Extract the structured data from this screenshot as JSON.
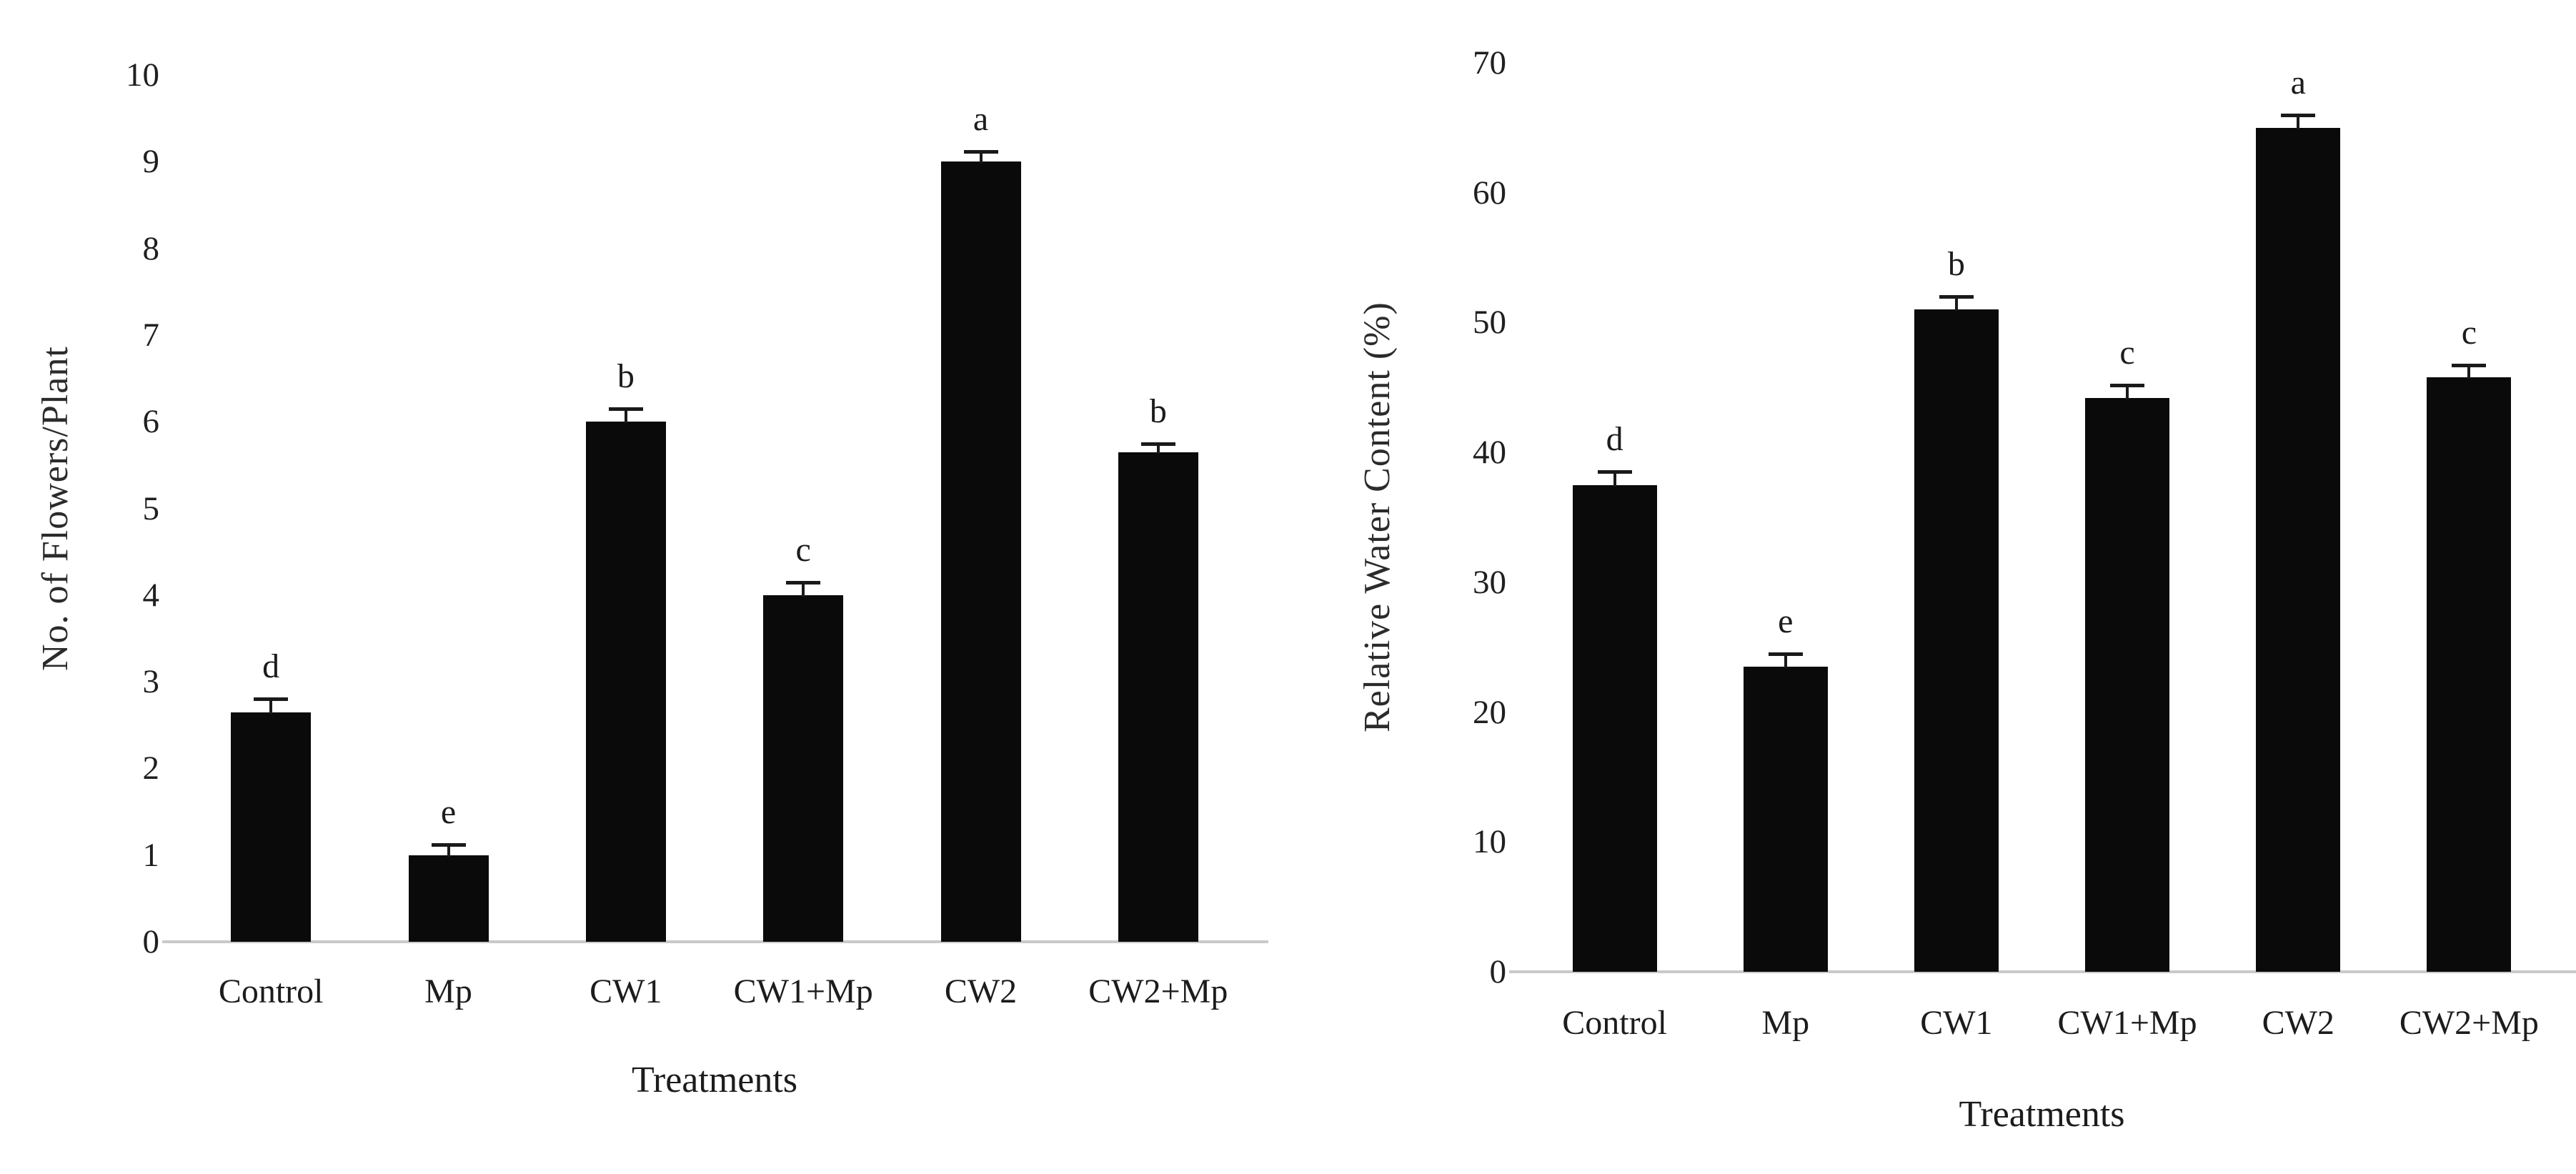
{
  "figure": {
    "background": "#ffffff",
    "text_color": "#1c1c1c",
    "axis_line_color": "#c9c9c9",
    "bar_color": "#0a0a0a"
  },
  "chart_data": [
    {
      "type": "bar",
      "title": "",
      "xlabel": "Treatments",
      "ylabel": "No. of Flowers/Plant",
      "categories": [
        "Control",
        "Mp",
        "CW1",
        "CW1+Mp",
        "CW2",
        "CW2+Mp"
      ],
      "values": [
        2.65,
        1.0,
        6.0,
        4.0,
        9.0,
        5.65
      ],
      "errors": [
        0.15,
        0.12,
        0.15,
        0.15,
        0.12,
        0.1
      ],
      "sig_letters": [
        "d",
        "e",
        "b",
        "c",
        "a",
        "b"
      ],
      "ylim": [
        0,
        10
      ],
      "yticks": [
        0,
        1,
        2,
        3,
        4,
        5,
        6,
        7,
        8,
        9,
        10
      ],
      "grid": false,
      "legend": "none",
      "bar_color": "#0a0a0a"
    },
    {
      "type": "bar",
      "title": "",
      "xlabel": "Treatments",
      "ylabel": "Relative Water Content (%)",
      "categories": [
        "Control",
        "Mp",
        "CW1",
        "CW1+Mp",
        "CW2",
        "CW2+Mp"
      ],
      "values": [
        37.5,
        23.5,
        51.0,
        44.2,
        65.0,
        45.8
      ],
      "errors": [
        1.0,
        1.0,
        1.0,
        1.0,
        1.0,
        0.9
      ],
      "sig_letters": [
        "d",
        "e",
        "b",
        "c",
        "a",
        "c"
      ],
      "ylim": [
        0,
        70
      ],
      "yticks": [
        0,
        10,
        20,
        30,
        40,
        50,
        60,
        70
      ],
      "grid": false,
      "legend": "none",
      "bar_color": "#0a0a0a"
    }
  ]
}
